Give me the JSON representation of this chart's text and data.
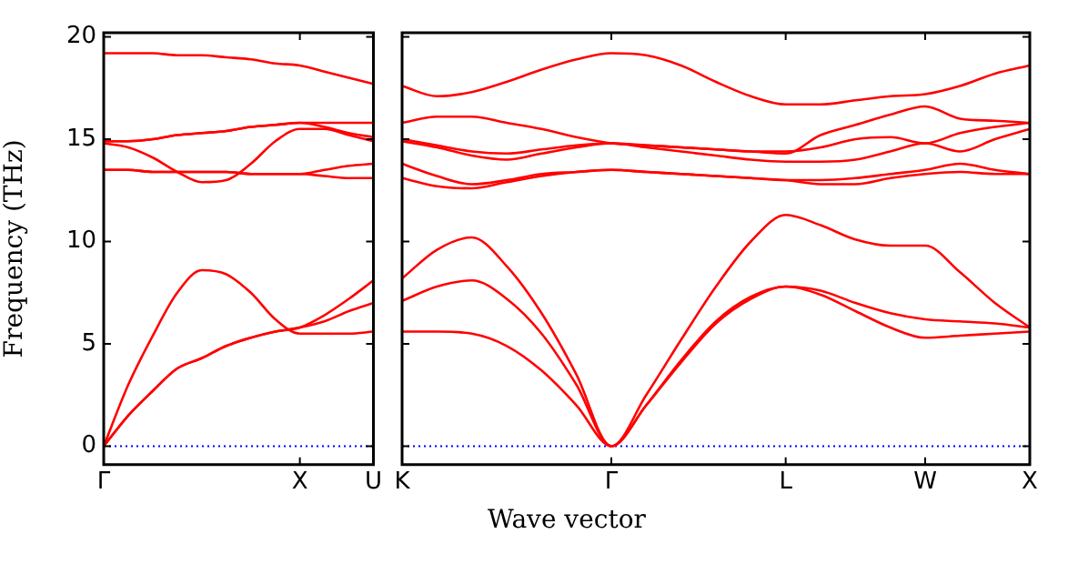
{
  "chart_data": [
    {
      "type": "line",
      "ylabel": "Frequency (THz)",
      "categories": [
        "Γ",
        null,
        null,
        null,
        null,
        null,
        null,
        null,
        "X",
        null,
        null,
        "U"
      ],
      "ylim": [
        -0.9,
        20.2
      ],
      "yticks": [
        0,
        5,
        10,
        15,
        20
      ],
      "grid": false,
      "legend": false,
      "marker": "none",
      "line_style": "solid",
      "ref_lines": [
        {
          "axis": "y",
          "value": 0,
          "color": "#0000ff",
          "line_style": "dotted"
        }
      ],
      "series": [
        {
          "color": "#ff0000",
          "values": [
            19.2,
            19.2,
            19.2,
            19.1,
            19.1,
            19.0,
            18.9,
            18.7,
            18.6,
            18.3,
            18.0,
            17.7
          ]
        },
        {
          "color": "#ff0000",
          "values": [
            14.9,
            14.9,
            15.0,
            15.2,
            15.3,
            15.4,
            15.6,
            15.7,
            15.8,
            15.8,
            15.8,
            15.8
          ]
        },
        {
          "color": "#ff0000",
          "values": [
            14.9,
            14.9,
            15.0,
            15.2,
            15.3,
            15.4,
            15.6,
            15.7,
            15.8,
            15.6,
            15.3,
            15.1
          ]
        },
        {
          "color": "#ff0000",
          "values": [
            14.8,
            14.6,
            14.1,
            13.4,
            12.9,
            13.0,
            13.8,
            14.9,
            15.5,
            15.5,
            15.2,
            14.9
          ]
        },
        {
          "color": "#ff0000",
          "values": [
            13.5,
            13.5,
            13.4,
            13.4,
            13.4,
            13.4,
            13.3,
            13.3,
            13.3,
            13.5,
            13.7,
            13.8
          ]
        },
        {
          "color": "#ff0000",
          "values": [
            13.5,
            13.5,
            13.4,
            13.4,
            13.4,
            13.4,
            13.3,
            13.3,
            13.3,
            13.2,
            13.1,
            13.1
          ]
        },
        {
          "color": "#ff0000",
          "values": [
            0,
            3.0,
            5.4,
            7.5,
            8.6,
            8.4,
            7.5,
            6.2,
            5.5,
            5.5,
            5.5,
            5.6
          ]
        },
        {
          "color": "#ff0000",
          "values": [
            0,
            1.5,
            2.7,
            3.8,
            4.3,
            4.9,
            5.3,
            5.6,
            5.8,
            6.4,
            7.2,
            8.1
          ]
        },
        {
          "color": "#ff0000",
          "values": [
            0,
            1.5,
            2.7,
            3.8,
            4.3,
            4.9,
            5.3,
            5.6,
            5.8,
            6.1,
            6.6,
            7.0
          ]
        }
      ]
    },
    {
      "type": "line",
      "xlabel": "Wave vector",
      "categories": [
        "K",
        null,
        null,
        null,
        null,
        null,
        "Γ",
        null,
        null,
        null,
        null,
        "L",
        null,
        null,
        null,
        "W",
        null,
        null,
        "X"
      ],
      "ylim": [
        -0.9,
        20.2
      ],
      "yticks": [
        0,
        5,
        10,
        15,
        20
      ],
      "tick_labels": "x",
      "grid": false,
      "legend": false,
      "marker": "none",
      "line_style": "solid",
      "ref_lines": [
        {
          "axis": "y",
          "value": 0,
          "color": "#0000ff",
          "line_style": "dotted"
        }
      ],
      "series": [
        {
          "color": "#ff0000",
          "values": [
            17.6,
            17.1,
            17.3,
            17.8,
            18.4,
            18.9,
            19.2,
            19.1,
            18.6,
            17.8,
            17.1,
            16.7,
            16.7,
            16.9,
            17.1,
            17.2,
            17.6,
            18.2,
            18.6
          ]
        },
        {
          "color": "#ff0000",
          "values": [
            15.8,
            16.1,
            16.1,
            15.8,
            15.5,
            15.1,
            14.8,
            14.7,
            14.6,
            14.5,
            14.4,
            14.3,
            15.2,
            15.7,
            16.2,
            16.6,
            16.0,
            15.9,
            15.8
          ]
        },
        {
          "color": "#ff0000",
          "values": [
            15.0,
            14.7,
            14.4,
            14.3,
            14.5,
            14.7,
            14.8,
            14.7,
            14.6,
            14.5,
            14.4,
            14.4,
            14.6,
            15.0,
            15.1,
            14.8,
            15.3,
            15.6,
            15.8
          ]
        },
        {
          "color": "#ff0000",
          "values": [
            14.9,
            14.6,
            14.2,
            14.0,
            14.3,
            14.6,
            14.8,
            14.6,
            14.4,
            14.2,
            14.0,
            13.9,
            13.9,
            14.0,
            14.4,
            14.8,
            14.4,
            15.0,
            15.5
          ]
        },
        {
          "color": "#ff0000",
          "values": [
            13.8,
            13.2,
            12.8,
            13.0,
            13.3,
            13.4,
            13.5,
            13.4,
            13.3,
            13.2,
            13.1,
            13.0,
            13.0,
            13.1,
            13.3,
            13.5,
            13.8,
            13.5,
            13.3
          ]
        },
        {
          "color": "#ff0000",
          "values": [
            13.1,
            12.7,
            12.6,
            12.9,
            13.2,
            13.4,
            13.5,
            13.4,
            13.3,
            13.2,
            13.1,
            13.0,
            12.8,
            12.8,
            13.1,
            13.3,
            13.4,
            13.3,
            13.3
          ]
        },
        {
          "color": "#ff0000",
          "values": [
            8.2,
            9.6,
            10.2,
            8.8,
            6.5,
            3.5,
            0,
            2.5,
            5.2,
            7.8,
            10.0,
            11.3,
            10.8,
            10.1,
            9.8,
            9.8,
            8.5,
            7.0,
            5.8
          ]
        },
        {
          "color": "#ff0000",
          "values": [
            7.1,
            7.8,
            8.1,
            7.2,
            5.5,
            3.0,
            0,
            2.0,
            4.2,
            6.1,
            7.3,
            7.8,
            7.6,
            7.0,
            6.5,
            6.2,
            6.1,
            6.0,
            5.8
          ]
        },
        {
          "color": "#ff0000",
          "values": [
            5.6,
            5.6,
            5.5,
            4.9,
            3.7,
            2.0,
            0,
            2.0,
            4.1,
            6.0,
            7.2,
            7.8,
            7.4,
            6.6,
            5.8,
            5.3,
            5.4,
            5.5,
            5.6
          ]
        }
      ]
    }
  ]
}
